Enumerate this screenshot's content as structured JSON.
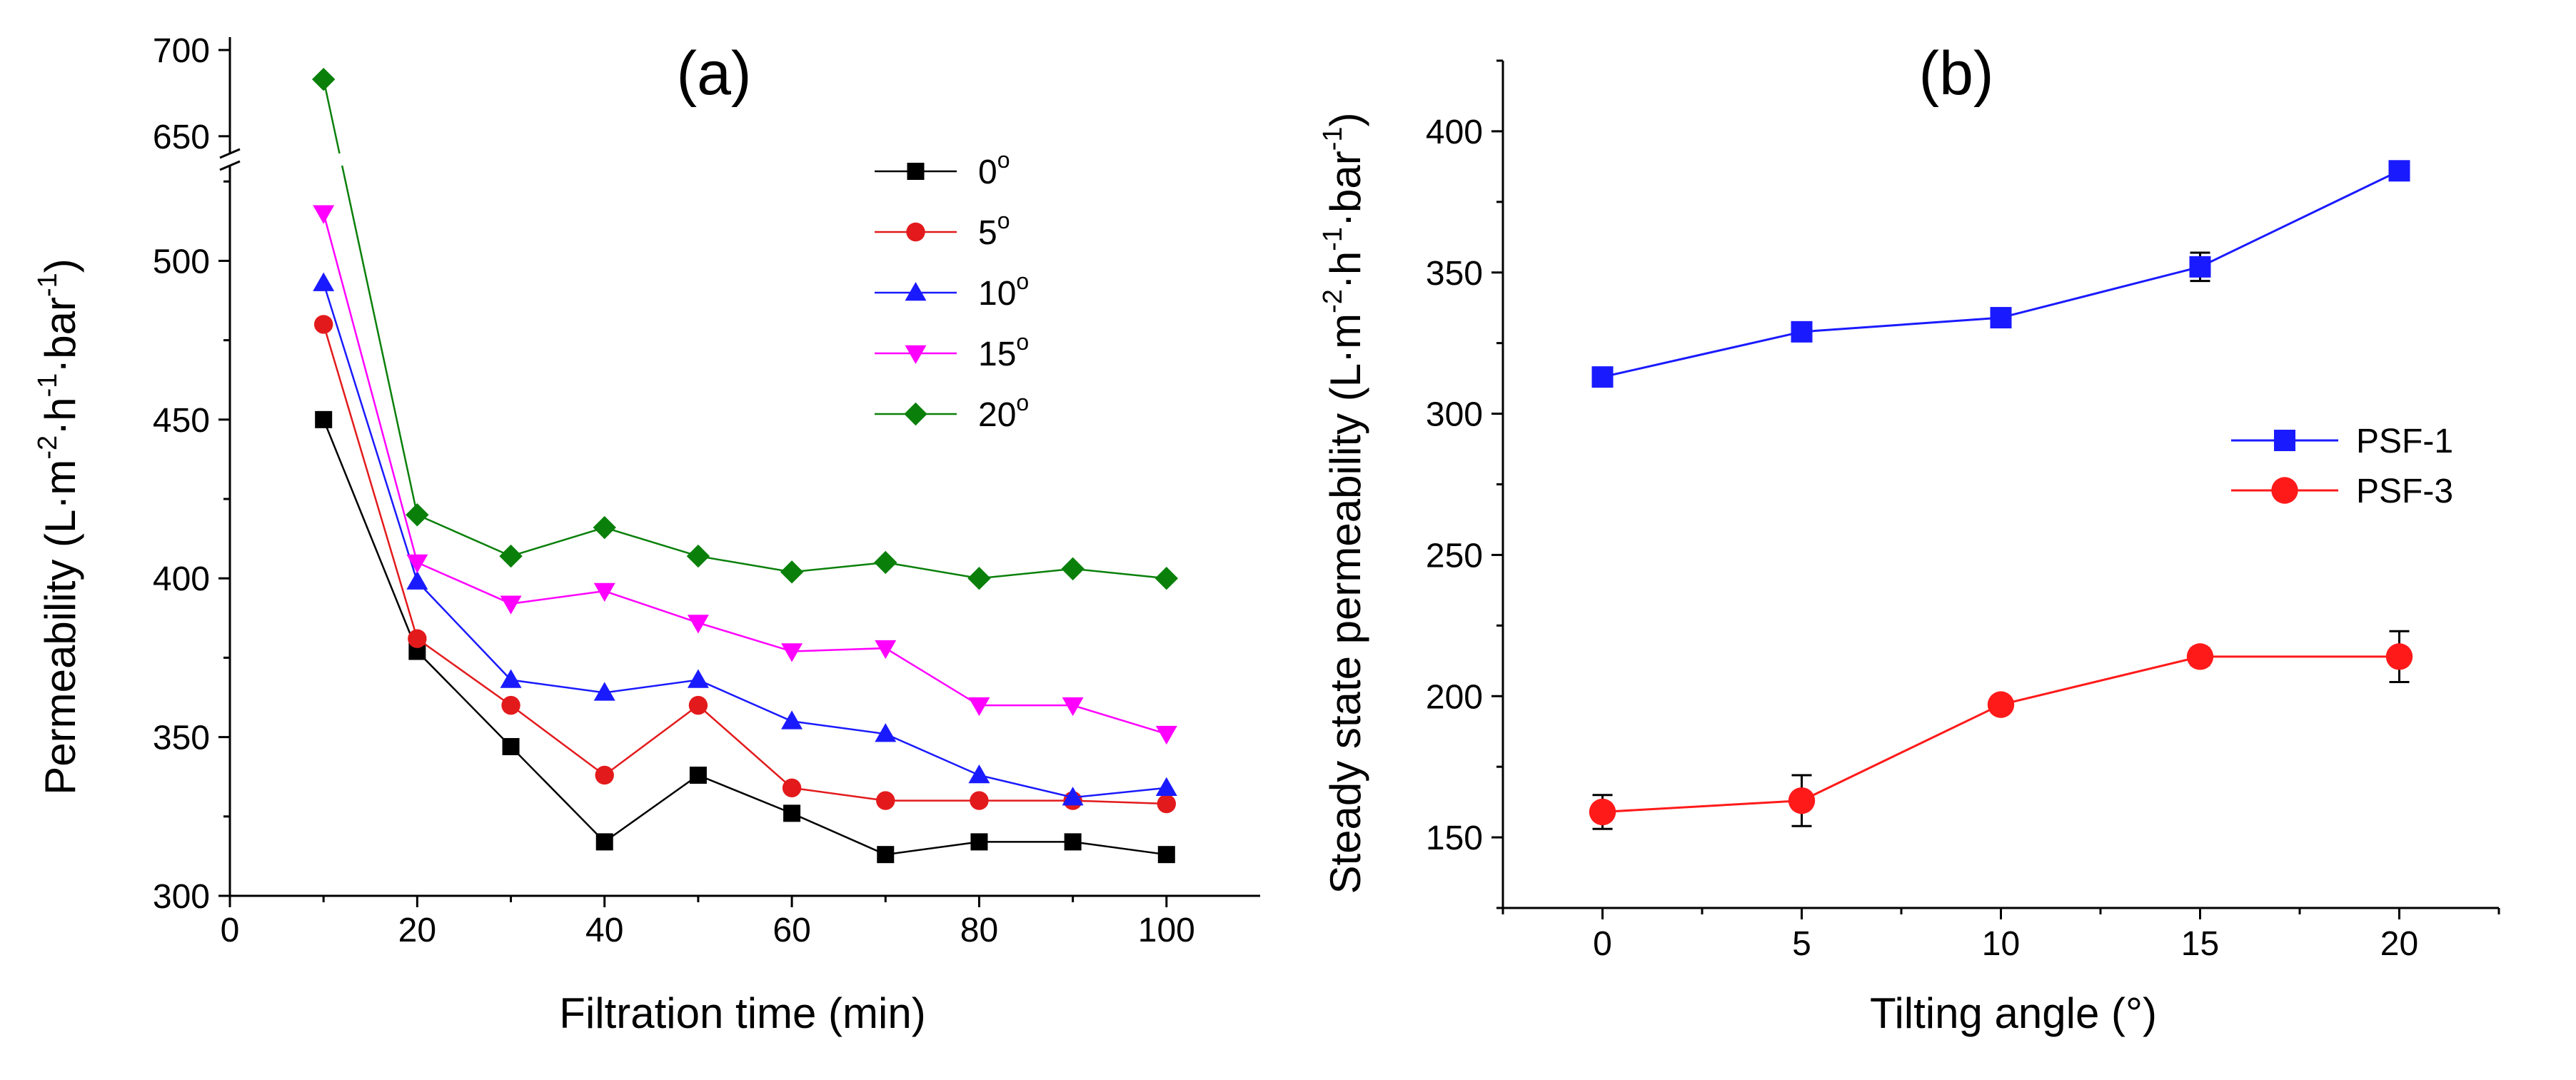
{
  "chart_data": [
    {
      "panel_label": "(a)",
      "type": "line",
      "xlabel": "Filtration time (min)",
      "ylabel": "Permeability (L·m",
      "ylabel_sup1": "-2",
      "ylabel_mid1": "·h",
      "ylabel_sup2": "-1",
      "ylabel_mid2": "·bar",
      "ylabel_sup3": "-1",
      "ylabel_end": ")",
      "xlim": [
        0,
        110
      ],
      "ylim_lower": [
        300,
        530
      ],
      "ylim_upper": [
        640,
        705
      ],
      "axis_break": [
        530,
        640
      ],
      "x_ticks": [
        0,
        20,
        40,
        60,
        80,
        100
      ],
      "y_ticks": [
        300,
        350,
        400,
        450,
        500,
        650,
        700
      ],
      "x": [
        10,
        20,
        30,
        40,
        50,
        60,
        70,
        80,
        90,
        100
      ],
      "degree_symbol": "o",
      "series": [
        {
          "name": "0",
          "marker": "square",
          "color": "#000000",
          "values": [
            450,
            377,
            347,
            317,
            338,
            326,
            313,
            317,
            317,
            313
          ]
        },
        {
          "name": "5",
          "marker": "circle",
          "color": "#e31a1c",
          "values": [
            480,
            381,
            360,
            338,
            360,
            334,
            330,
            330,
            330,
            329
          ]
        },
        {
          "name": "10",
          "marker": "triangle-up",
          "color": "#1a1aff",
          "values": [
            493,
            399,
            368,
            364,
            368,
            355,
            351,
            338,
            331,
            334
          ]
        },
        {
          "name": "15",
          "marker": "triangle-down",
          "color": "#ff00ff",
          "values": [
            515,
            405,
            392,
            396,
            386,
            377,
            378,
            360,
            360,
            351
          ]
        },
        {
          "name": "20",
          "marker": "diamond",
          "color": "#0a800a",
          "values": [
            683,
            420,
            407,
            416,
            407,
            402,
            405,
            400,
            403,
            400
          ]
        }
      ]
    },
    {
      "panel_label": "(b)",
      "type": "line",
      "xlabel": "Tilting angle (°)",
      "ylabel": "Steady state permeability (L·m",
      "ylabel_sup1": "-2",
      "ylabel_mid1": "·h",
      "ylabel_sup2": "-1",
      "ylabel_mid2": "·bar",
      "ylabel_sup3": "-1",
      "ylabel_end": ")",
      "xlim": [
        -2.5,
        22.5
      ],
      "ylim": [
        125,
        425
      ],
      "x_ticks": [
        0,
        5,
        10,
        15,
        20
      ],
      "y_ticks": [
        150,
        200,
        250,
        300,
        350,
        400
      ],
      "x": [
        0,
        5,
        10,
        15,
        20
      ],
      "series": [
        {
          "name": "PSF-1",
          "marker": "square",
          "color": "#1a1aff",
          "values": [
            313,
            329,
            334,
            352,
            386
          ],
          "errors": [
            3,
            3,
            3,
            5,
            2
          ]
        },
        {
          "name": "PSF-3",
          "marker": "circle",
          "color": "#ff1a1a",
          "values": [
            159,
            163,
            197,
            214,
            214
          ],
          "errors": [
            6,
            9,
            2,
            3,
            9
          ]
        }
      ]
    }
  ]
}
